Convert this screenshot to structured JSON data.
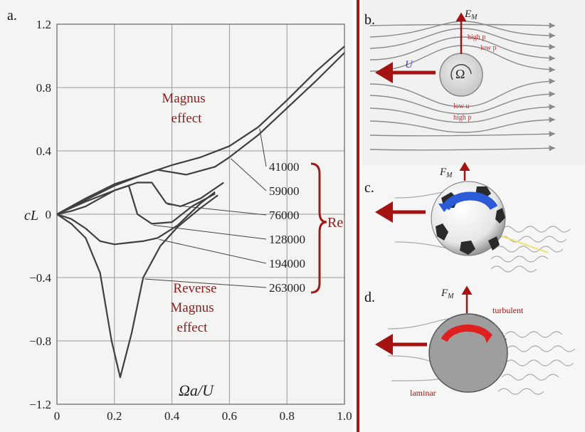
{
  "panels": {
    "a": {
      "label": "a.",
      "chart_data": {
        "type": "line",
        "xlabel": "Ωa/U",
        "ylabel": "cL",
        "xlim": [
          0,
          1.0
        ],
        "ylim": [
          -1.2,
          1.2
        ],
        "x_ticks": [
          "0",
          "0.2",
          "0.4",
          "0.6",
          "0.8",
          "1.0"
        ],
        "y_ticks": [
          "1.2",
          "0.8",
          "0.4",
          "0",
          "−0.4",
          "−0.8",
          "−1.2"
        ],
        "grid": true,
        "series": [
          {
            "name": "41000",
            "points": [
              [
                0,
                0
              ],
              [
                0.1,
                0.1
              ],
              [
                0.2,
                0.19
              ],
              [
                0.3,
                0.25
              ],
              [
                0.4,
                0.31
              ],
              [
                0.5,
                0.36
              ],
              [
                0.6,
                0.43
              ],
              [
                0.7,
                0.55
              ],
              [
                0.8,
                0.72
              ],
              [
                0.9,
                0.9
              ],
              [
                1.0,
                1.06
              ]
            ]
          },
          {
            "name": "59000",
            "points": [
              [
                0,
                0
              ],
              [
                0.1,
                0.09
              ],
              [
                0.2,
                0.18
              ],
              [
                0.3,
                0.25
              ],
              [
                0.35,
                0.28
              ],
              [
                0.45,
                0.25
              ],
              [
                0.55,
                0.3
              ],
              [
                0.6,
                0.36
              ],
              [
                0.7,
                0.5
              ],
              [
                0.8,
                0.67
              ],
              [
                0.9,
                0.84
              ],
              [
                1.0,
                1.02
              ]
            ]
          },
          {
            "name": "76000",
            "points": [
              [
                0,
                0
              ],
              [
                0.1,
                0.08
              ],
              [
                0.2,
                0.15
              ],
              [
                0.28,
                0.2
              ],
              [
                0.33,
                0.2
              ],
              [
                0.38,
                0.07
              ],
              [
                0.43,
                0.05
              ],
              [
                0.5,
                0.1
              ],
              [
                0.58,
                0.2
              ]
            ]
          },
          {
            "name": "128000",
            "points": [
              [
                0,
                0
              ],
              [
                0.05,
                0.02
              ],
              [
                0.1,
                0.05
              ],
              [
                0.15,
                0.1
              ],
              [
                0.2,
                0.15
              ],
              [
                0.25,
                0.18
              ],
              [
                0.28,
                0.0
              ],
              [
                0.33,
                -0.06
              ],
              [
                0.4,
                -0.05
              ],
              [
                0.47,
                0.05
              ],
              [
                0.55,
                0.13
              ]
            ]
          },
          {
            "name": "194000",
            "points": [
              [
                0,
                0
              ],
              [
                0.05,
                -0.03
              ],
              [
                0.1,
                -0.09
              ],
              [
                0.15,
                -0.17
              ],
              [
                0.2,
                -0.19
              ],
              [
                0.25,
                -0.18
              ],
              [
                0.3,
                -0.17
              ],
              [
                0.35,
                -0.15
              ],
              [
                0.42,
                -0.07
              ],
              [
                0.5,
                0.07
              ],
              [
                0.55,
                0.14
              ]
            ]
          },
          {
            "name": "263000",
            "points": [
              [
                0,
                0
              ],
              [
                0.05,
                -0.06
              ],
              [
                0.1,
                -0.15
              ],
              [
                0.15,
                -0.37
              ],
              [
                0.19,
                -0.8
              ],
              [
                0.22,
                -1.03
              ],
              [
                0.26,
                -0.75
              ],
              [
                0.3,
                -0.4
              ],
              [
                0.36,
                -0.2
              ],
              [
                0.42,
                -0.08
              ],
              [
                0.5,
                0.04
              ],
              [
                0.56,
                0.12
              ]
            ]
          }
        ],
        "annotations": {
          "magnus": [
            "Magnus",
            "effect"
          ],
          "reverse_magnus": [
            "Reverse",
            "Magnus",
            "effect"
          ],
          "reynolds_group": "Re"
        }
      }
    },
    "b": {
      "label": "b.",
      "force_label": "E",
      "force_subscript": "M",
      "velocity_label": "U",
      "omega_label": "Ω",
      "top_text": [
        "high p",
        "low p"
      ],
      "bottom_text": [
        "low u",
        "high p"
      ]
    },
    "c": {
      "label": "c.",
      "force_label": "F",
      "force_subscript": "M"
    },
    "d": {
      "label": "d.",
      "force_label": "F",
      "force_subscript": "M",
      "turbulent_label": "turbulent",
      "laminar_label": "laminar"
    }
  },
  "colors": {
    "curve": "#3f3f3f",
    "grid": "#9a9a9a",
    "annotation": "#8b1c1c",
    "divider": "#a01a1a",
    "arrow": "#a41212",
    "cylinder": "#9e9e9e",
    "streamline": "#8a8a8a",
    "spin_blue": "#2b5bd7",
    "spin_red": "#e02020"
  }
}
